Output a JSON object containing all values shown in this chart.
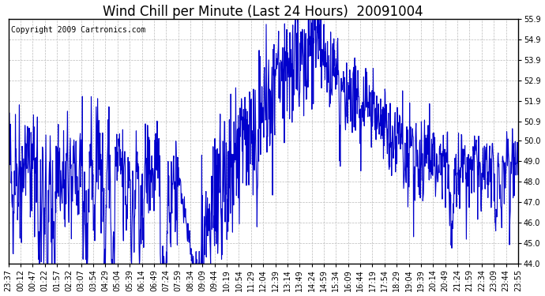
{
  "title": "Wind Chill per Minute (Last 24 Hours)  20091004",
  "copyright_text": "Copyright 2009 Cartronics.com",
  "line_color": "#0000CC",
  "background_color": "#ffffff",
  "grid_color": "#bbbbbb",
  "ylim": [
    44.0,
    55.9
  ],
  "yticks": [
    44.0,
    45.0,
    46.0,
    47.0,
    48.0,
    49.0,
    50.0,
    50.9,
    51.9,
    52.9,
    53.9,
    54.9,
    55.9
  ],
  "xtick_labels": [
    "23:37",
    "00:12",
    "00:47",
    "01:22",
    "01:57",
    "02:32",
    "03:07",
    "03:54",
    "04:29",
    "05:04",
    "05:39",
    "06:14",
    "06:49",
    "07:24",
    "07:59",
    "08:34",
    "09:09",
    "09:44",
    "10:19",
    "10:54",
    "11:29",
    "12:04",
    "12:39",
    "13:14",
    "13:49",
    "14:24",
    "14:59",
    "15:34",
    "16:09",
    "16:44",
    "17:19",
    "17:54",
    "18:29",
    "19:04",
    "19:39",
    "20:14",
    "20:49",
    "21:24",
    "21:59",
    "22:34",
    "23:09",
    "23:44",
    "23:55"
  ],
  "title_fontsize": 12,
  "copyright_fontsize": 7,
  "tick_fontsize": 7,
  "line_width": 0.8,
  "seed": 42,
  "n_points": 1440
}
